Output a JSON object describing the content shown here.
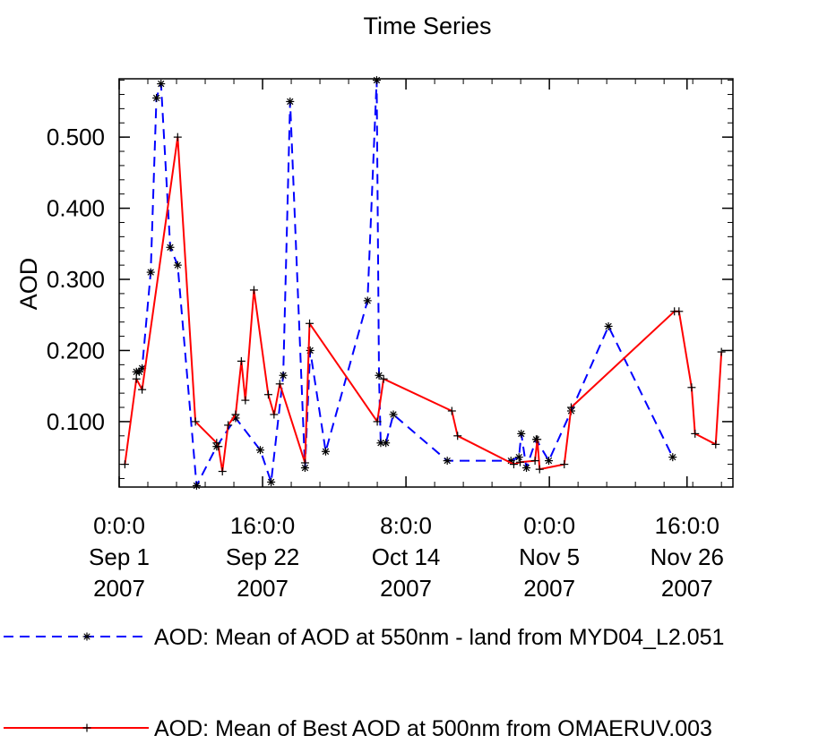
{
  "chart_data": {
    "type": "line",
    "title": "Time Series",
    "ylabel": "AOD",
    "xlabel": "",
    "ylim": [
      0.008,
      0.582
    ],
    "xlim": [
      0,
      107
    ],
    "yticks": [
      {
        "value": 0.1,
        "label": "0.100"
      },
      {
        "value": 0.2,
        "label": "0.200"
      },
      {
        "value": 0.3,
        "label": "0.300"
      },
      {
        "value": 0.4,
        "label": "0.400"
      },
      {
        "value": 0.5,
        "label": "0.500"
      }
    ],
    "xticks": [
      {
        "value": 0,
        "lines": [
          "0:0:0",
          "Sep 1",
          "2007"
        ]
      },
      {
        "value": 25,
        "lines": [
          "16:0:0",
          "Sep 22",
          "2007"
        ]
      },
      {
        "value": 50,
        "lines": [
          "8:0:0",
          "Oct 14",
          "2007"
        ]
      },
      {
        "value": 75,
        "lines": [
          "0:0:0",
          "Nov 5",
          "2007"
        ]
      },
      {
        "value": 99,
        "lines": [
          "16:0:0",
          "Nov 26",
          "2007"
        ]
      }
    ],
    "series": [
      {
        "name": "AOD: Mean of AOD at 550nm - land from MYD04_L2.051",
        "color": "#0000ff",
        "dash": true,
        "marker": "asterisk",
        "x": [
          3.0,
          3.5,
          4.0,
          5.5,
          6.5,
          7.3,
          8.9,
          10.2,
          13.5,
          17.0,
          20.3,
          24.6,
          26.5,
          28.6,
          29.8,
          32.4,
          33.3,
          36.0,
          43.3,
          44.9,
          45.3,
          45.6,
          46.5,
          47.8,
          57.2,
          68.3,
          69.7,
          70.1,
          71.0,
          72.7,
          74.9,
          78.8,
          85.3,
          96.5
        ],
        "y": [
          0.17,
          0.17,
          0.175,
          0.31,
          0.555,
          0.575,
          0.345,
          0.32,
          0.01,
          0.065,
          0.105,
          0.06,
          0.015,
          0.165,
          0.55,
          0.035,
          0.2,
          0.058,
          0.27,
          0.58,
          0.165,
          0.07,
          0.07,
          0.11,
          0.045,
          0.045,
          0.05,
          0.083,
          0.035,
          0.075,
          0.045,
          0.115,
          0.234,
          0.05
        ]
      },
      {
        "name": "AOD: Mean of Best AOD at 500nm from OMAERUV.003",
        "color": "#ff0000",
        "dash": false,
        "marker": "plus",
        "x": [
          1.0,
          3.0,
          4.0,
          10.2,
          13.3,
          17.0,
          17.3,
          18.0,
          19.0,
          20.3,
          21.3,
          22.0,
          23.5,
          26.0,
          27.0,
          28.0,
          32.4,
          33.2,
          45.0,
          46.1,
          58.0,
          59.0,
          68.8,
          69.9,
          72.5,
          72.9,
          73.3,
          77.6,
          78.8,
          96.8,
          97.6,
          99.8,
          100.4,
          104.0,
          105.0
        ],
        "y": [
          0.04,
          0.16,
          0.145,
          0.5,
          0.1,
          0.07,
          0.065,
          0.03,
          0.095,
          0.11,
          0.185,
          0.13,
          0.285,
          0.138,
          0.11,
          0.153,
          0.042,
          0.238,
          0.1,
          0.16,
          0.115,
          0.08,
          0.04,
          0.043,
          0.045,
          0.075,
          0.033,
          0.04,
          0.12,
          0.255,
          0.255,
          0.148,
          0.083,
          0.068,
          0.198
        ]
      }
    ],
    "grid": false,
    "legend_position": "bottom"
  }
}
